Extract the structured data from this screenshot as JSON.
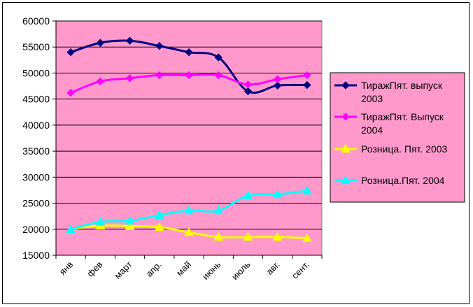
{
  "chart_data": {
    "type": "line",
    "categories": [
      "янв",
      "фев",
      "март",
      "апр.",
      "май",
      "июнь",
      "июль",
      "авг.",
      "сент."
    ],
    "ylim": [
      15000,
      60000
    ],
    "yticks": [
      "15000",
      "20000",
      "25000",
      "30000",
      "35000",
      "40000",
      "45000",
      "50000",
      "55000",
      "60000"
    ],
    "grid": true,
    "legend_position": "right",
    "plot_background": "#FF99CC",
    "series": [
      {
        "name": "ТиражПят. выпуск 2003",
        "name_lines": [
          "ТиражПят. выпуск",
          "2003"
        ],
        "color": "#000080",
        "marker": "diamond",
        "values": [
          54000,
          55800,
          56200,
          55200,
          54000,
          53000,
          46500,
          47600,
          47700
        ]
      },
      {
        "name": "ТиражПят. Выпуск 2004",
        "name_lines": [
          "ТиражПят. Выпуск",
          "2004"
        ],
        "color": "#FF00FF",
        "marker": "diamond",
        "values": [
          46200,
          48400,
          49000,
          49600,
          49600,
          49600,
          47800,
          48800,
          49600
        ]
      },
      {
        "name": "Розница. Пят. 2003",
        "name_lines": [
          "Розница. Пят. 2003"
        ],
        "color": "#FFFF00",
        "marker": "triangle",
        "values": [
          20000,
          20700,
          20600,
          20400,
          19400,
          18500,
          18500,
          18500,
          18300
        ]
      },
      {
        "name": "Розница.Пят. 2004",
        "name_lines": [
          "Розница.Пят. 2004"
        ],
        "color": "#00FFFF",
        "marker": "triangle",
        "values": [
          20000,
          21400,
          21600,
          22700,
          23600,
          23600,
          26500,
          26700,
          27400
        ]
      }
    ]
  }
}
